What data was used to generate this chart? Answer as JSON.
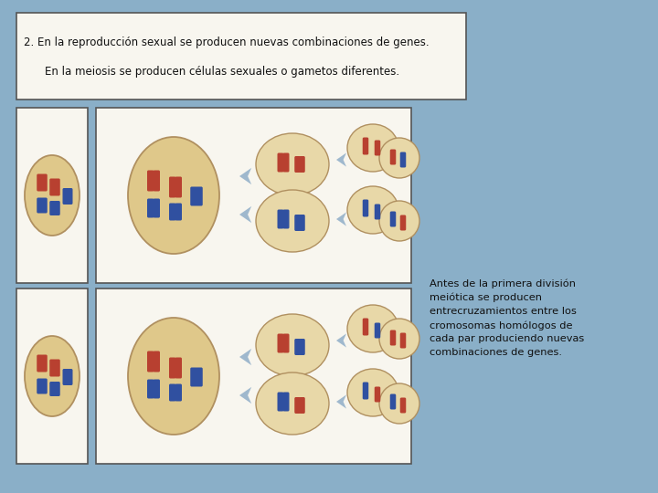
{
  "background_color": "#8aafc8",
  "title_line1": "2. En la reproducción sexual se producen nuevas combinaciones de genes.",
  "title_line2": "    En la meiosis se producen células sexuales o gametos diferentes.",
  "annotation": "Antes de la primera división\nmeiótica se producen\nentrecruzamientos entre los\ncromosomas homólogos de\ncada par produciendo nuevas\ncombinaciones de genes.",
  "cell_fill": "#dfc88a",
  "cell_edge": "#b09060",
  "box_fill": "#f0ece0",
  "box_edge": "#555555",
  "red": "#b84030",
  "blue": "#3050a0",
  "arrow_color": "#90aec8",
  "white_fill": "#f8f6ef"
}
